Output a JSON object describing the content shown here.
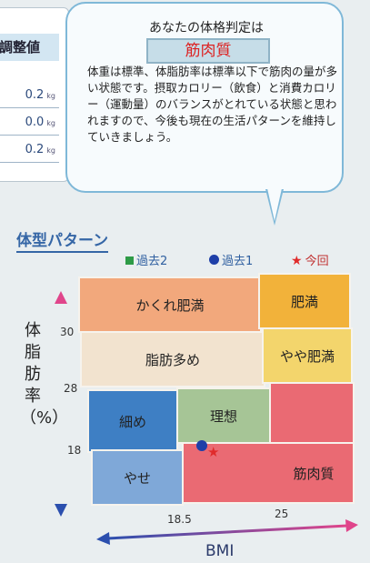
{
  "adjust_panel": {
    "header": "調整値",
    "rows": [
      {
        "value": "0.2",
        "unit": "kg"
      },
      {
        "value": "0.0",
        "unit": "kg"
      },
      {
        "value": "0.2",
        "unit": "kg"
      }
    ]
  },
  "verdict": {
    "title": "あなたの体格判定は",
    "result": "筋肉質",
    "description": "体重は標準、体脂肪率は標準以下で筋肉の量が多い状態です。摂取カロリー（飲食）と消費カロリー（運動量）のバランスがとれている状態と思われますので、今後も現在の生活パターンを維持していきましょう。"
  },
  "section_title": "体型パターン",
  "legend": {
    "past2": "過去2",
    "past1": "過去1",
    "current": "今回"
  },
  "axes": {
    "y_label": "体脂肪率（%）",
    "x_label": "BMI",
    "y_ticks": [
      "30",
      "28",
      "18"
    ],
    "x_ticks": [
      "18.5",
      "25"
    ]
  },
  "zones": {
    "hidden_obese": "かくれ肥満",
    "obese": "肥満",
    "high_fat": "脂肪多め",
    "slightly_obese": "やや肥満",
    "slim": "細め",
    "ideal": "理想",
    "muscular": "筋肉質",
    "thin": "やせ"
  },
  "colors": {
    "hidden_obese": "#f2a87c",
    "obese": "#f2b23a",
    "high_fat": "#f2e3cf",
    "slightly_obese": "#f3d56c",
    "slim": "#3e7fc4",
    "ideal": "#a6c596",
    "muscular": "#ea6a73",
    "thin": "#7fa8d8",
    "past1_marker": "#1e3fa8",
    "current_marker": "#e02b2b",
    "past2_marker": "#2e9b47"
  }
}
